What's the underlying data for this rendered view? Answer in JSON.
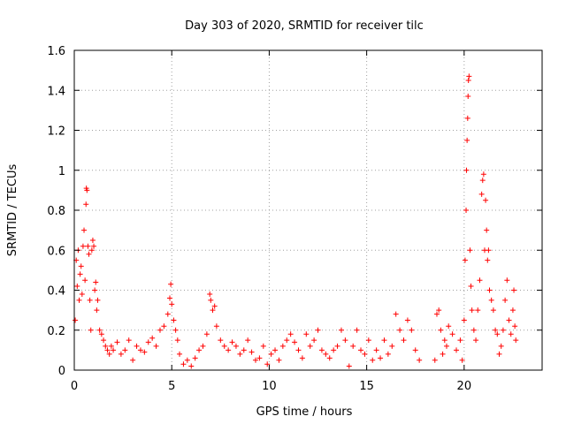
{
  "chart_data": {
    "type": "scatter",
    "title": "Day 303 of 2020, SRMTID for receiver tilc",
    "xlabel": "GPS time / hours",
    "ylabel": "SRMTID / TECUs",
    "xlim": [
      0,
      24
    ],
    "ylim": [
      0,
      1.6
    ],
    "xticks": [
      "0",
      "5",
      "10",
      "15",
      "20"
    ],
    "xtick_values": [
      0,
      5,
      10,
      15,
      20
    ],
    "yticks": [
      "0",
      "0.2",
      "0.4",
      "0.6",
      "0.8",
      "1",
      "1.2",
      "1.4",
      "1.6"
    ],
    "ytick_values": [
      0,
      0.2,
      0.4,
      0.6,
      0.8,
      1.0,
      1.2,
      1.4,
      1.6
    ],
    "grid": true,
    "marker": "+",
    "marker_color": "#ff0000",
    "series": [
      {
        "name": "",
        "points": [
          [
            0.05,
            0.25
          ],
          [
            0.1,
            0.55
          ],
          [
            0.15,
            0.42
          ],
          [
            0.2,
            0.6
          ],
          [
            0.25,
            0.35
          ],
          [
            0.3,
            0.48
          ],
          [
            0.35,
            0.52
          ],
          [
            0.4,
            0.38
          ],
          [
            0.45,
            0.62
          ],
          [
            0.5,
            0.7
          ],
          [
            0.55,
            0.45
          ],
          [
            0.6,
            0.83
          ],
          [
            0.62,
            0.91
          ],
          [
            0.65,
            0.9
          ],
          [
            0.7,
            0.62
          ],
          [
            0.75,
            0.58
          ],
          [
            0.8,
            0.35
          ],
          [
            0.85,
            0.2
          ],
          [
            0.9,
            0.6
          ],
          [
            0.95,
            0.65
          ],
          [
            1.0,
            0.62
          ],
          [
            1.05,
            0.4
          ],
          [
            1.1,
            0.44
          ],
          [
            1.15,
            0.3
          ],
          [
            1.2,
            0.35
          ],
          [
            1.3,
            0.2
          ],
          [
            1.4,
            0.18
          ],
          [
            1.5,
            0.15
          ],
          [
            1.6,
            0.12
          ],
          [
            1.7,
            0.1
          ],
          [
            1.8,
            0.08
          ],
          [
            1.9,
            0.12
          ],
          [
            2.0,
            0.1
          ],
          [
            2.2,
            0.14
          ],
          [
            2.4,
            0.08
          ],
          [
            2.6,
            0.1
          ],
          [
            2.8,
            0.15
          ],
          [
            3.0,
            0.05
          ],
          [
            3.2,
            0.12
          ],
          [
            3.4,
            0.1
          ],
          [
            3.6,
            0.09
          ],
          [
            3.8,
            0.14
          ],
          [
            4.0,
            0.16
          ],
          [
            4.2,
            0.12
          ],
          [
            4.4,
            0.2
          ],
          [
            4.6,
            0.22
          ],
          [
            4.8,
            0.28
          ],
          [
            4.9,
            0.36
          ],
          [
            4.95,
            0.43
          ],
          [
            5.0,
            0.33
          ],
          [
            5.1,
            0.25
          ],
          [
            5.2,
            0.2
          ],
          [
            5.3,
            0.15
          ],
          [
            5.4,
            0.08
          ],
          [
            5.6,
            0.03
          ],
          [
            5.8,
            0.05
          ],
          [
            6.0,
            0.02
          ],
          [
            6.2,
            0.06
          ],
          [
            6.4,
            0.1
          ],
          [
            6.6,
            0.12
          ],
          [
            6.8,
            0.18
          ],
          [
            6.95,
            0.38
          ],
          [
            7.0,
            0.35
          ],
          [
            7.1,
            0.3
          ],
          [
            7.2,
            0.32
          ],
          [
            7.3,
            0.22
          ],
          [
            7.5,
            0.15
          ],
          [
            7.7,
            0.12
          ],
          [
            7.9,
            0.1
          ],
          [
            8.1,
            0.14
          ],
          [
            8.3,
            0.12
          ],
          [
            8.5,
            0.08
          ],
          [
            8.7,
            0.1
          ],
          [
            8.9,
            0.15
          ],
          [
            9.1,
            0.09
          ],
          [
            9.3,
            0.05
          ],
          [
            9.5,
            0.06
          ],
          [
            9.7,
            0.12
          ],
          [
            9.9,
            0.03
          ],
          [
            10.1,
            0.08
          ],
          [
            10.3,
            0.1
          ],
          [
            10.5,
            0.05
          ],
          [
            10.7,
            0.12
          ],
          [
            10.9,
            0.15
          ],
          [
            11.1,
            0.18
          ],
          [
            11.3,
            0.14
          ],
          [
            11.5,
            0.1
          ],
          [
            11.7,
            0.06
          ],
          [
            11.9,
            0.18
          ],
          [
            12.1,
            0.12
          ],
          [
            12.3,
            0.15
          ],
          [
            12.5,
            0.2
          ],
          [
            12.7,
            0.1
          ],
          [
            12.9,
            0.08
          ],
          [
            13.1,
            0.06
          ],
          [
            13.3,
            0.1
          ],
          [
            13.5,
            0.12
          ],
          [
            13.7,
            0.2
          ],
          [
            13.9,
            0.15
          ],
          [
            14.1,
            0.02
          ],
          [
            14.3,
            0.12
          ],
          [
            14.5,
            0.2
          ],
          [
            14.7,
            0.1
          ],
          [
            14.9,
            0.08
          ],
          [
            15.1,
            0.15
          ],
          [
            15.3,
            0.05
          ],
          [
            15.5,
            0.1
          ],
          [
            15.7,
            0.06
          ],
          [
            15.9,
            0.15
          ],
          [
            16.1,
            0.08
          ],
          [
            16.3,
            0.12
          ],
          [
            16.5,
            0.28
          ],
          [
            16.7,
            0.2
          ],
          [
            16.9,
            0.15
          ],
          [
            17.1,
            0.25
          ],
          [
            17.3,
            0.2
          ],
          [
            17.5,
            0.1
          ],
          [
            17.7,
            0.05
          ],
          [
            18.5,
            0.05
          ],
          [
            18.6,
            0.28
          ],
          [
            18.7,
            0.3
          ],
          [
            18.8,
            0.2
          ],
          [
            18.9,
            0.08
          ],
          [
            19.0,
            0.15
          ],
          [
            19.1,
            0.12
          ],
          [
            19.2,
            0.22
          ],
          [
            19.4,
            0.18
          ],
          [
            19.6,
            0.1
          ],
          [
            19.8,
            0.15
          ],
          [
            19.9,
            0.05
          ],
          [
            20.0,
            0.25
          ],
          [
            20.05,
            0.55
          ],
          [
            20.1,
            0.8
          ],
          [
            20.12,
            1.0
          ],
          [
            20.15,
            1.15
          ],
          [
            20.18,
            1.26
          ],
          [
            20.2,
            1.37
          ],
          [
            20.22,
            1.45
          ],
          [
            20.25,
            1.47
          ],
          [
            20.3,
            0.6
          ],
          [
            20.35,
            0.42
          ],
          [
            20.4,
            0.3
          ],
          [
            20.5,
            0.2
          ],
          [
            20.6,
            0.15
          ],
          [
            20.7,
            0.3
          ],
          [
            20.8,
            0.45
          ],
          [
            20.9,
            0.88
          ],
          [
            20.95,
            0.95
          ],
          [
            21.0,
            0.98
          ],
          [
            21.05,
            0.6
          ],
          [
            21.1,
            0.85
          ],
          [
            21.15,
            0.7
          ],
          [
            21.2,
            0.55
          ],
          [
            21.25,
            0.6
          ],
          [
            21.3,
            0.4
          ],
          [
            21.4,
            0.35
          ],
          [
            21.5,
            0.3
          ],
          [
            21.6,
            0.2
          ],
          [
            21.7,
            0.18
          ],
          [
            21.8,
            0.08
          ],
          [
            21.9,
            0.12
          ],
          [
            22.0,
            0.2
          ],
          [
            22.1,
            0.35
          ],
          [
            22.2,
            0.45
          ],
          [
            22.3,
            0.25
          ],
          [
            22.4,
            0.18
          ],
          [
            22.5,
            0.3
          ],
          [
            22.55,
            0.4
          ],
          [
            22.6,
            0.22
          ],
          [
            22.65,
            0.15
          ]
        ]
      }
    ]
  }
}
